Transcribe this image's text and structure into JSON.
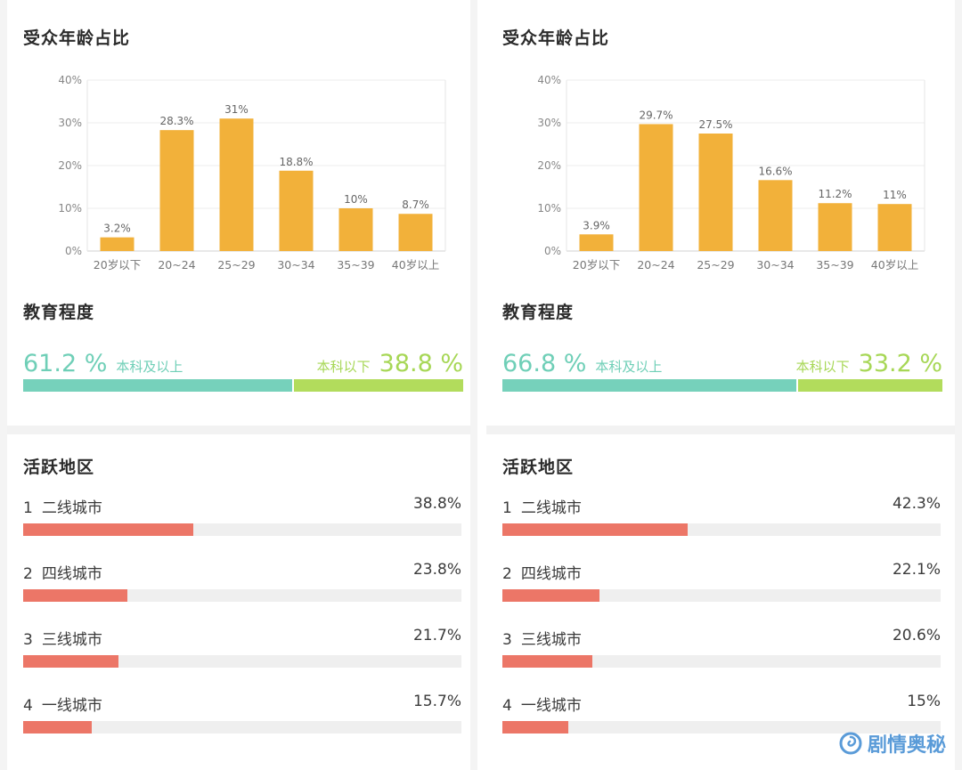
{
  "panels": [
    {
      "age_title": "受众年龄占比",
      "edu_title": "教育程度",
      "region_title": "活跃地区",
      "chart_data": {
        "type": "bar",
        "title": "受众年龄占比",
        "categories": [
          "20岁以下",
          "20~24",
          "25~29",
          "30~34",
          "35~39",
          "40岁以上"
        ],
        "values": [
          3.2,
          28.3,
          31,
          18.8,
          10,
          8.7
        ],
        "value_labels": [
          "3.2%",
          "28.3%",
          "31%",
          "18.8%",
          "10%",
          "8.7%"
        ],
        "ylim": [
          0,
          40
        ],
        "yticks": [
          "0%",
          "10%",
          "20%",
          "30%",
          "40%"
        ],
        "grid": true,
        "bar_color": "#f2b13a"
      },
      "education": {
        "above_value": "61.2 %",
        "above_label": "本科及以上",
        "above_fraction": 0.612,
        "below_label": "本科以下",
        "below_value": "38.8 %"
      },
      "regions": [
        {
          "rank": "1",
          "name": "二线城市",
          "value": "38.8%",
          "fraction": 0.388
        },
        {
          "rank": "2",
          "name": "四线城市",
          "value": "23.8%",
          "fraction": 0.238
        },
        {
          "rank": "3",
          "name": "三线城市",
          "value": "21.7%",
          "fraction": 0.217
        },
        {
          "rank": "4",
          "name": "一线城市",
          "value": "15.7%",
          "fraction": 0.157
        }
      ]
    },
    {
      "age_title": "受众年龄占比",
      "edu_title": "教育程度",
      "region_title": "活跃地区",
      "chart_data": {
        "type": "bar",
        "title": "受众年龄占比",
        "categories": [
          "20岁以下",
          "20~24",
          "25~29",
          "30~34",
          "35~39",
          "40岁以上"
        ],
        "values": [
          3.9,
          29.7,
          27.5,
          16.6,
          11.2,
          11
        ],
        "value_labels": [
          "3.9%",
          "29.7%",
          "27.5%",
          "16.6%",
          "11.2%",
          "11%"
        ],
        "ylim": [
          0,
          40
        ],
        "yticks": [
          "0%",
          "10%",
          "20%",
          "30%",
          "40%"
        ],
        "grid": true,
        "bar_color": "#f2b13a"
      },
      "education": {
        "above_value": "66.8 %",
        "above_label": "本科及以上",
        "above_fraction": 0.668,
        "below_label": "本科以下",
        "below_value": "33.2 %"
      },
      "regions": [
        {
          "rank": "1",
          "name": "二线城市",
          "value": "42.3%",
          "fraction": 0.423
        },
        {
          "rank": "2",
          "name": "四线城市",
          "value": "22.1%",
          "fraction": 0.221
        },
        {
          "rank": "3",
          "name": "三线城市",
          "value": "20.6%",
          "fraction": 0.206
        },
        {
          "rank": "4",
          "name": "一线城市",
          "value": "15%",
          "fraction": 0.15
        }
      ]
    }
  ],
  "watermark": {
    "text": "剧情奥秘",
    "icon": "swirl-logo-icon",
    "color": "#5a9bd8"
  }
}
